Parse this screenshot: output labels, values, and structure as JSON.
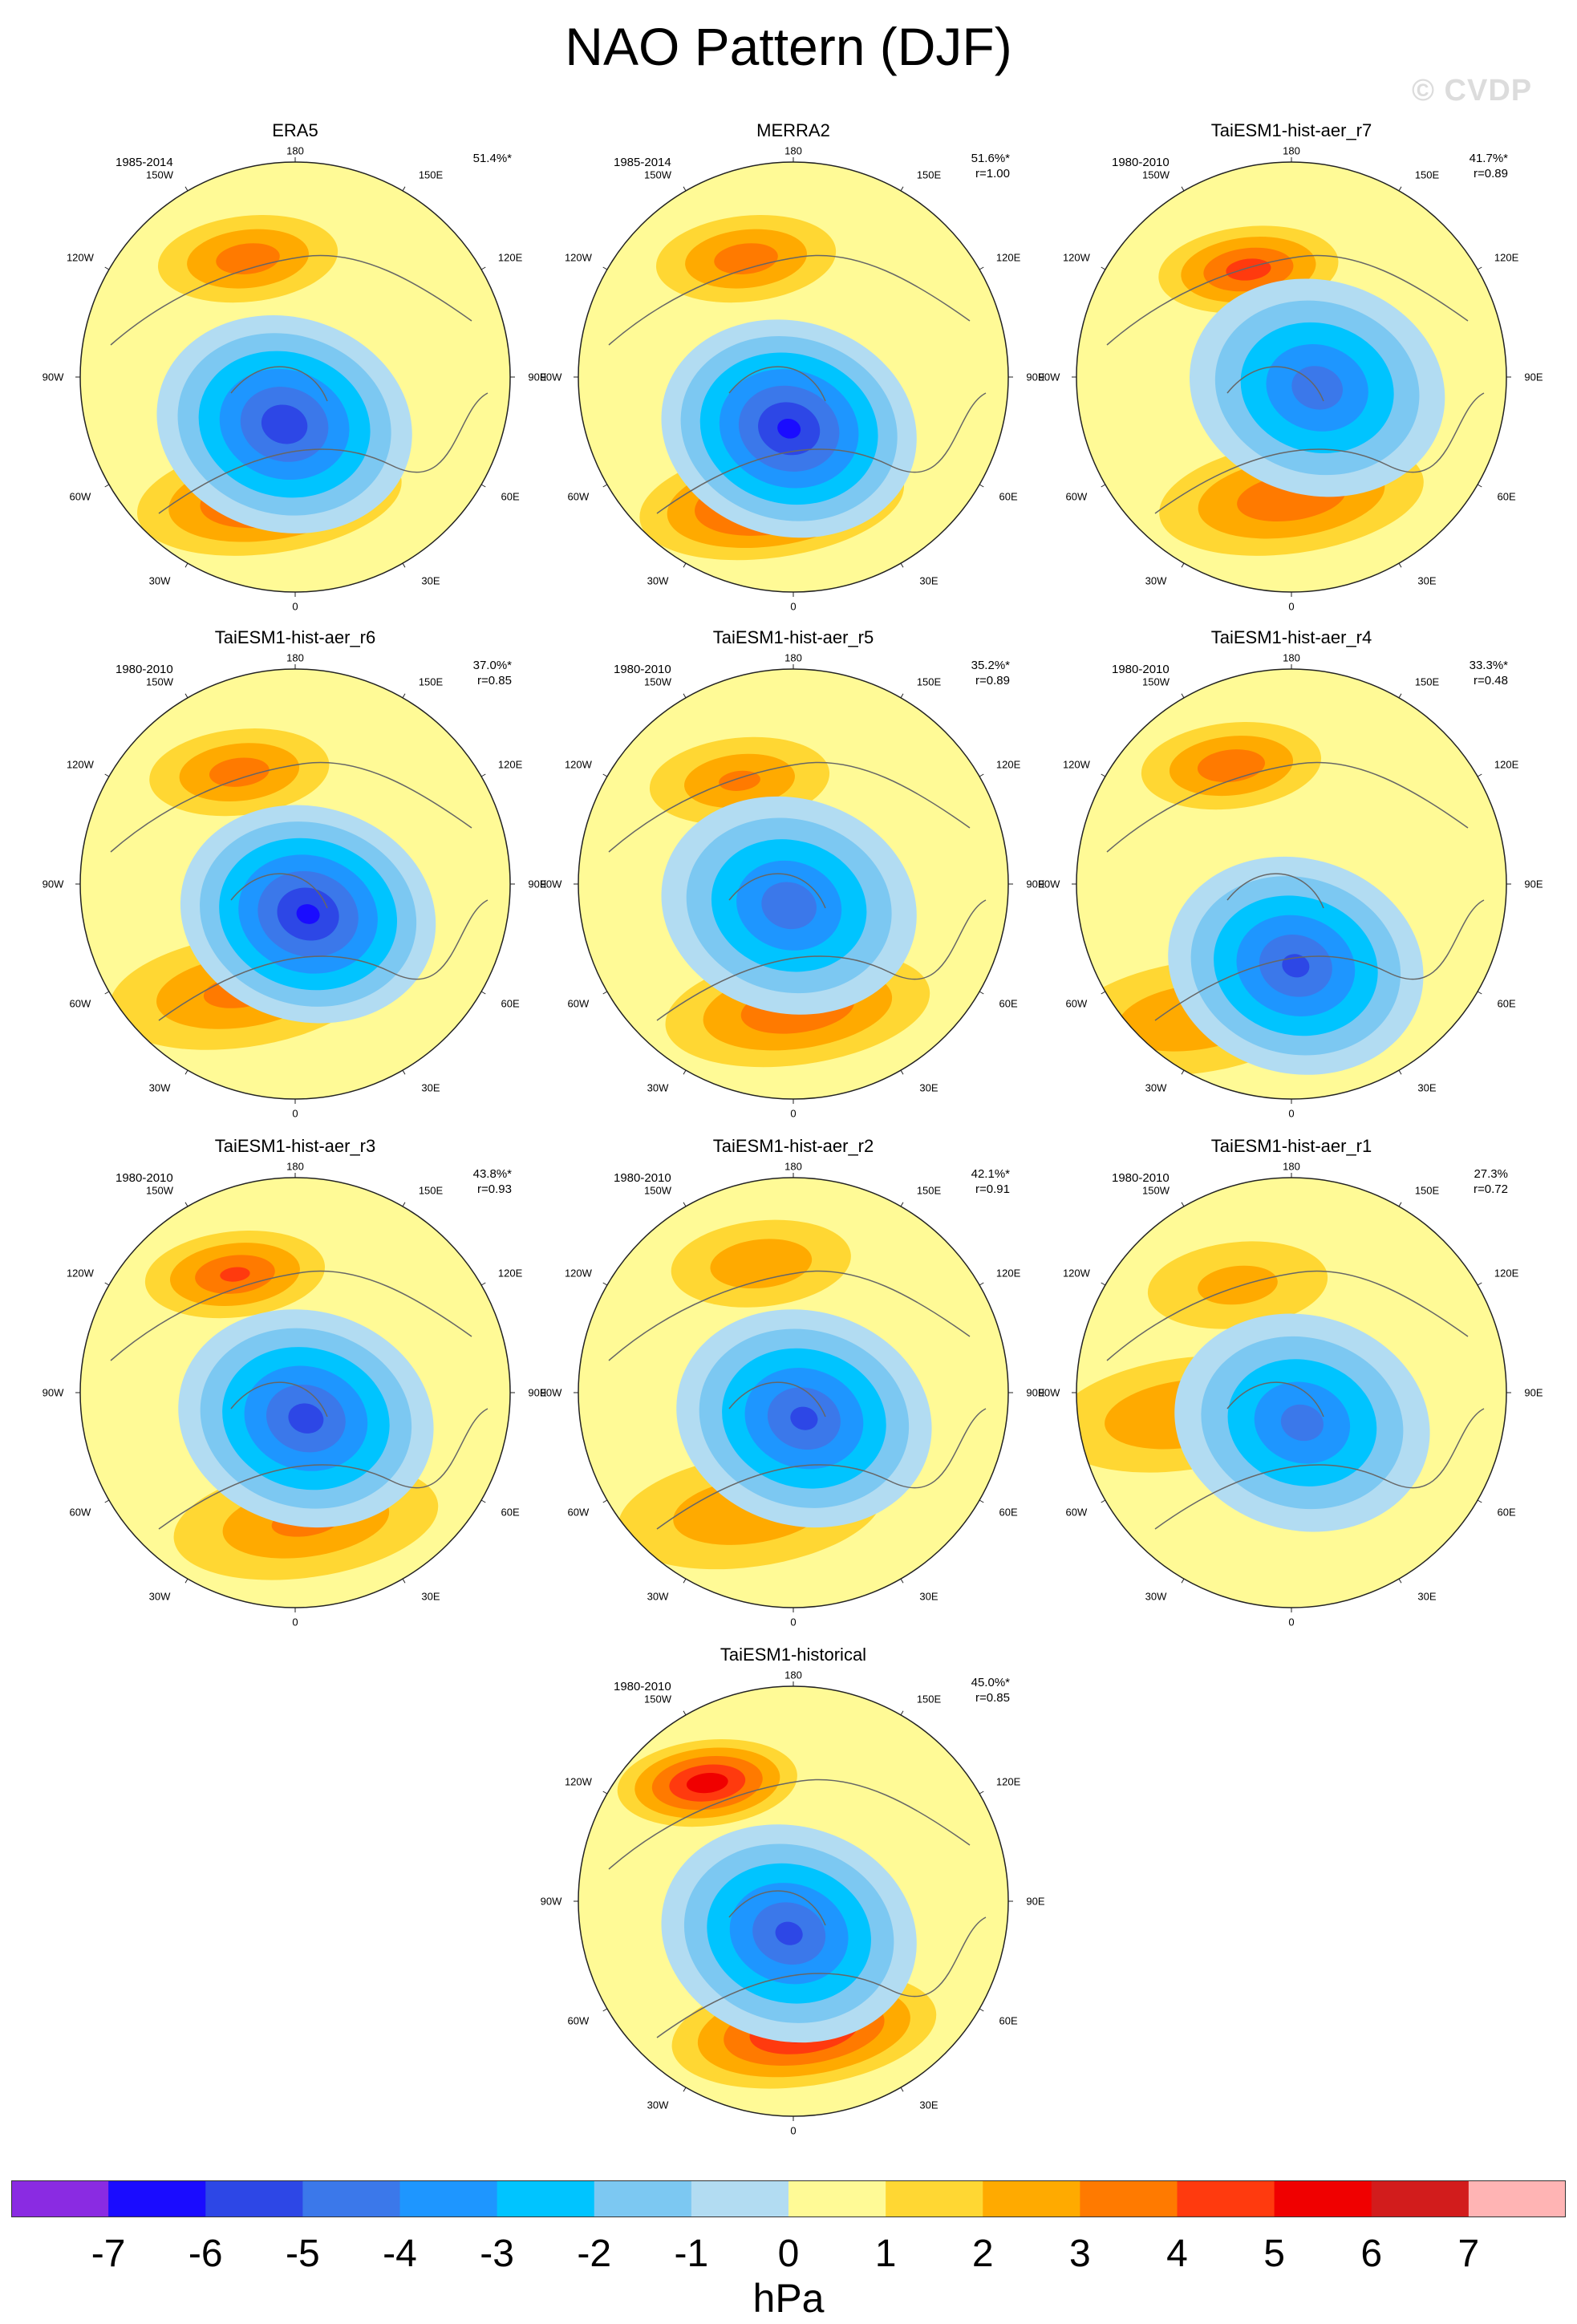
{
  "title": "NAO Pattern (DJF)",
  "watermark": "© CVDP",
  "units": "hPa",
  "longitude_labels": {
    "top": "180",
    "top_left": "150W",
    "top_right": "150E",
    "upper_left": "120W",
    "upper_right": "120E",
    "left": "90W",
    "right": "90E",
    "lower_left": "60W",
    "lower_right": "60E",
    "bottom_left": "30W",
    "bottom_right": "30E",
    "bottom": "0"
  },
  "colorbar": {
    "ticks": [
      "-7",
      "-6",
      "-5",
      "-4",
      "-3",
      "-2",
      "-1",
      "0",
      "1",
      "2",
      "3",
      "4",
      "5",
      "6",
      "7"
    ],
    "colors": [
      "#8a2be2",
      "#1a0cff",
      "#2d47e6",
      "#3b78ea",
      "#1e96ff",
      "#00c4ff",
      "#7cc8f2",
      "#b2dcf2",
      "#fffa96",
      "#ffd733",
      "#ffaa00",
      "#ff7a00",
      "#ff3a0e",
      "#f00000",
      "#d21c1c",
      "#ffb4b4"
    ]
  },
  "panels": [
    {
      "title": "ERA5",
      "period": "1985-2014",
      "variance": "51.4%*",
      "correlation": "",
      "pattern": {
        "neg_center": [
          -0.05,
          0.22
        ],
        "neg_strength": 5.5,
        "pos_center": [
          -0.12,
          0.56
        ],
        "pos_strength": 3.6,
        "pac_center": [
          -0.22,
          -0.55
        ],
        "pac_strength": 2.5
      }
    },
    {
      "title": "MERRA2",
      "period": "1985-2014",
      "variance": "51.6%*",
      "correlation": "r=1.00",
      "pattern": {
        "neg_center": [
          -0.02,
          0.24
        ],
        "neg_strength": 6.0,
        "pos_center": [
          -0.1,
          0.58
        ],
        "pos_strength": 4.2,
        "pac_center": [
          -0.22,
          -0.55
        ],
        "pac_strength": 2.5
      }
    },
    {
      "title": "TaiESM1-hist-aer_r7",
      "period": "1980-2010",
      "variance": "41.7%*",
      "correlation": "r=0.89",
      "pattern": {
        "neg_center": [
          0.12,
          0.05
        ],
        "neg_strength": 4.4,
        "pos_center": [
          0.0,
          0.56
        ],
        "pos_strength": 2.8,
        "pac_center": [
          -0.2,
          -0.5
        ],
        "pac_strength": 3.4
      }
    },
    {
      "title": "TaiESM1-hist-aer_r6",
      "period": "1980-2010",
      "variance": "37.0%*",
      "correlation": "r=0.85",
      "pattern": {
        "neg_center": [
          0.06,
          0.14
        ],
        "neg_strength": 6.0,
        "pos_center": [
          -0.25,
          0.5
        ],
        "pos_strength": 2.2,
        "pac_center": [
          -0.26,
          -0.52
        ],
        "pac_strength": 2.4
      }
    },
    {
      "title": "TaiESM1-hist-aer_r5",
      "period": "1980-2010",
      "variance": "35.2%*",
      "correlation": "r=0.89",
      "pattern": {
        "neg_center": [
          -0.02,
          0.1
        ],
        "neg_strength": 4.5,
        "pos_center": [
          0.02,
          0.58
        ],
        "pos_strength": 2.9,
        "pac_center": [
          -0.25,
          -0.48
        ],
        "pac_strength": 2.0
      }
    },
    {
      "title": "TaiESM1-hist-aer_r4",
      "period": "1980-2010",
      "variance": "33.3%*",
      "correlation": "r=0.48",
      "pattern": {
        "neg_center": [
          0.02,
          0.38
        ],
        "neg_strength": 5.0,
        "pos_center": [
          -0.45,
          0.62
        ],
        "pos_strength": 1.8,
        "pac_center": [
          -0.28,
          -0.55
        ],
        "pac_strength": 2.6
      }
    },
    {
      "title": "TaiESM1-hist-aer_r3",
      "period": "1980-2010",
      "variance": "43.8%*",
      "correlation": "r=0.93",
      "pattern": {
        "neg_center": [
          0.05,
          0.12
        ],
        "neg_strength": 5.2,
        "pos_center": [
          0.05,
          0.6
        ],
        "pos_strength": 2.1,
        "pac_center": [
          -0.28,
          -0.55
        ],
        "pac_strength": 3.0
      }
    },
    {
      "title": "TaiESM1-hist-aer_r2",
      "period": "1980-2010",
      "variance": "42.1%*",
      "correlation": "r=0.91",
      "pattern": {
        "neg_center": [
          0.05,
          0.12
        ],
        "neg_strength": 5.0,
        "pos_center": [
          -0.2,
          0.55
        ],
        "pos_strength": 1.8,
        "pac_center": [
          -0.15,
          -0.6
        ],
        "pac_strength": 1.7
      }
    },
    {
      "title": "TaiESM1-hist-aer_r1",
      "period": "1980-2010",
      "variance": "27.3%",
      "correlation": "r=0.72",
      "pattern": {
        "neg_center": [
          0.05,
          0.14
        ],
        "neg_strength": 4.2,
        "pos_center": [
          -0.5,
          0.1
        ],
        "pos_strength": 1.9,
        "pac_center": [
          -0.25,
          -0.5
        ],
        "pac_strength": 1.2
      }
    },
    {
      "title": "TaiESM1-historical",
      "period": "1980-2010",
      "variance": "45.0%*",
      "correlation": "r=0.85",
      "pattern": {
        "neg_center": [
          -0.02,
          0.15
        ],
        "neg_strength": 5.0,
        "pos_center": [
          0.05,
          0.6
        ],
        "pos_strength": 4.5,
        "pac_center": [
          -0.4,
          -0.55
        ],
        "pac_strength": 4.6
      }
    }
  ]
}
